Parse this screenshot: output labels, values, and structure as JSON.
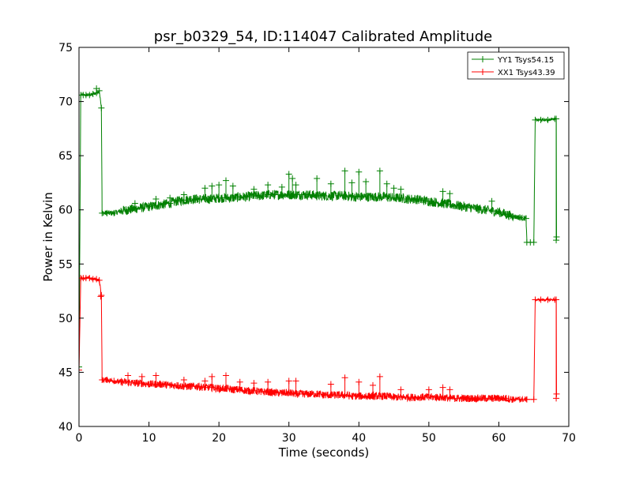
{
  "chart_data": {
    "type": "line",
    "title": "psr_b0329_54, ID:114047 Calibrated Amplitude",
    "xlabel": "Time (seconds)",
    "ylabel": "Power in Kelvin",
    "xlim": [
      0,
      70
    ],
    "ylim": [
      40,
      75
    ],
    "xticks": [
      0,
      10,
      20,
      30,
      40,
      50,
      60,
      70
    ],
    "yticks": [
      40,
      45,
      50,
      55,
      60,
      65,
      70,
      75
    ],
    "grid": false,
    "legend_position": "top-right",
    "series": [
      {
        "name": "YY1 Tsys54.15",
        "color": "#008000",
        "points": [
          [
            0.0,
            45.5
          ],
          [
            0.25,
            70.6
          ],
          [
            0.6,
            70.6
          ],
          [
            1.0,
            70.6
          ],
          [
            1.5,
            70.6
          ],
          [
            2.0,
            70.7
          ],
          [
            2.5,
            70.8
          ],
          [
            2.9,
            71.0
          ],
          [
            3.2,
            69.4
          ],
          [
            3.3,
            59.7
          ],
          [
            4.0,
            59.7
          ],
          [
            5.0,
            59.7
          ],
          [
            6.0,
            59.9
          ],
          [
            7.0,
            60.0
          ],
          [
            8.0,
            60.1
          ],
          [
            9.0,
            60.2
          ],
          [
            10.0,
            60.3
          ],
          [
            11.0,
            60.4
          ],
          [
            12.0,
            60.5
          ],
          [
            13.0,
            60.6
          ],
          [
            14.0,
            60.8
          ],
          [
            15.0,
            60.9
          ],
          [
            16.0,
            61.0
          ],
          [
            17.0,
            61.0
          ],
          [
            18.0,
            61.0
          ],
          [
            19.0,
            61.0
          ],
          [
            20.0,
            61.1
          ],
          [
            21.0,
            61.1
          ],
          [
            22.0,
            61.1
          ],
          [
            23.0,
            61.2
          ],
          [
            24.0,
            61.2
          ],
          [
            25.0,
            61.3
          ],
          [
            26.0,
            61.3
          ],
          [
            27.0,
            61.4
          ],
          [
            28.0,
            61.4
          ],
          [
            29.0,
            61.4
          ],
          [
            30.0,
            61.4
          ],
          [
            31.0,
            61.4
          ],
          [
            32.0,
            61.4
          ],
          [
            33.0,
            61.4
          ],
          [
            34.0,
            61.3
          ],
          [
            35.0,
            61.3
          ],
          [
            36.0,
            61.3
          ],
          [
            37.0,
            61.3
          ],
          [
            38.0,
            61.3
          ],
          [
            39.0,
            61.2
          ],
          [
            40.0,
            61.2
          ],
          [
            41.0,
            61.2
          ],
          [
            42.0,
            61.2
          ],
          [
            43.0,
            61.2
          ],
          [
            44.0,
            61.2
          ],
          [
            45.0,
            61.1
          ],
          [
            46.0,
            61.1
          ],
          [
            47.0,
            61.0
          ],
          [
            48.0,
            61.0
          ],
          [
            49.0,
            60.9
          ],
          [
            50.0,
            60.8
          ],
          [
            51.0,
            60.7
          ],
          [
            52.0,
            60.6
          ],
          [
            53.0,
            60.5
          ],
          [
            54.0,
            60.4
          ],
          [
            55.0,
            60.3
          ],
          [
            56.0,
            60.2
          ],
          [
            57.0,
            60.1
          ],
          [
            58.0,
            60.0
          ],
          [
            59.0,
            59.9
          ],
          [
            60.0,
            59.8
          ],
          [
            61.0,
            59.6
          ],
          [
            62.0,
            59.4
          ],
          [
            63.0,
            59.3
          ],
          [
            63.9,
            59.2
          ],
          [
            64.0,
            57.0
          ],
          [
            64.5,
            57.0
          ],
          [
            65.0,
            57.0
          ],
          [
            65.2,
            68.3
          ],
          [
            66.0,
            68.3
          ],
          [
            67.0,
            68.3
          ],
          [
            68.0,
            68.4
          ],
          [
            68.2,
            68.4
          ],
          [
            68.25,
            57.5
          ]
        ]
      },
      {
        "name": "XX1 Tsys43.39",
        "color": "#ff0000",
        "points": [
          [
            0.0,
            45.2
          ],
          [
            0.25,
            53.7
          ],
          [
            0.6,
            53.7
          ],
          [
            1.0,
            53.7
          ],
          [
            1.5,
            53.7
          ],
          [
            2.0,
            53.6
          ],
          [
            2.5,
            53.6
          ],
          [
            2.9,
            53.5
          ],
          [
            3.2,
            52.1
          ],
          [
            3.3,
            44.3
          ],
          [
            4.0,
            44.3
          ],
          [
            5.0,
            44.2
          ],
          [
            6.0,
            44.1
          ],
          [
            7.0,
            44.1
          ],
          [
            8.0,
            44.0
          ],
          [
            9.0,
            44.0
          ],
          [
            10.0,
            43.9
          ],
          [
            11.0,
            43.9
          ],
          [
            12.0,
            43.9
          ],
          [
            13.0,
            43.8
          ],
          [
            14.0,
            43.8
          ],
          [
            15.0,
            43.7
          ],
          [
            16.0,
            43.7
          ],
          [
            17.0,
            43.7
          ],
          [
            18.0,
            43.6
          ],
          [
            19.0,
            43.6
          ],
          [
            20.0,
            43.5
          ],
          [
            21.0,
            43.5
          ],
          [
            22.0,
            43.4
          ],
          [
            23.0,
            43.4
          ],
          [
            24.0,
            43.3
          ],
          [
            25.0,
            43.3
          ],
          [
            26.0,
            43.2
          ],
          [
            27.0,
            43.2
          ],
          [
            28.0,
            43.1
          ],
          [
            29.0,
            43.1
          ],
          [
            30.0,
            43.1
          ],
          [
            31.0,
            43.0
          ],
          [
            32.0,
            43.0
          ],
          [
            33.0,
            43.0
          ],
          [
            34.0,
            43.0
          ],
          [
            35.0,
            42.9
          ],
          [
            36.0,
            42.9
          ],
          [
            37.0,
            42.9
          ],
          [
            38.0,
            42.9
          ],
          [
            39.0,
            42.8
          ],
          [
            40.0,
            42.8
          ],
          [
            41.0,
            42.8
          ],
          [
            42.0,
            42.8
          ],
          [
            43.0,
            42.8
          ],
          [
            44.0,
            42.8
          ],
          [
            45.0,
            42.7
          ],
          [
            46.0,
            42.7
          ],
          [
            47.0,
            42.7
          ],
          [
            48.0,
            42.7
          ],
          [
            49.0,
            42.7
          ],
          [
            50.0,
            42.7
          ],
          [
            51.0,
            42.7
          ],
          [
            52.0,
            42.7
          ],
          [
            53.0,
            42.6
          ],
          [
            54.0,
            42.6
          ],
          [
            55.0,
            42.6
          ],
          [
            56.0,
            42.6
          ],
          [
            57.0,
            42.6
          ],
          [
            58.0,
            42.6
          ],
          [
            59.0,
            42.6
          ],
          [
            60.0,
            42.6
          ],
          [
            61.0,
            42.6
          ],
          [
            62.0,
            42.5
          ],
          [
            63.0,
            42.5
          ],
          [
            64.0,
            42.5
          ],
          [
            65.0,
            42.5
          ],
          [
            65.2,
            51.7
          ],
          [
            66.0,
            51.7
          ],
          [
            67.0,
            51.7
          ],
          [
            68.0,
            51.7
          ],
          [
            68.2,
            51.7
          ],
          [
            68.25,
            43.0
          ]
        ]
      }
    ],
    "noise_band": {
      "x_range": [
        6,
        62
      ],
      "series_amplitude": [
        0.45,
        0.35
      ]
    },
    "spikes": [
      {
        "series": 0,
        "points": [
          [
            2.5,
            71.2
          ],
          [
            8,
            60.6
          ],
          [
            11,
            61.0
          ],
          [
            13,
            61.1
          ],
          [
            15,
            61.4
          ],
          [
            18,
            62.0
          ],
          [
            19,
            62.2
          ],
          [
            20,
            62.3
          ],
          [
            21,
            62.7
          ],
          [
            22,
            62.2
          ],
          [
            25,
            61.9
          ],
          [
            27,
            62.3
          ],
          [
            29,
            62.1
          ],
          [
            30,
            63.3
          ],
          [
            30.5,
            62.9
          ],
          [
            31,
            62.3
          ],
          [
            34,
            62.9
          ],
          [
            36,
            62.4
          ],
          [
            38,
            63.6
          ],
          [
            39,
            62.5
          ],
          [
            40,
            63.5
          ],
          [
            41,
            62.6
          ],
          [
            43,
            63.6
          ],
          [
            44,
            62.4
          ],
          [
            45,
            62.0
          ],
          [
            46,
            61.9
          ],
          [
            52,
            61.7
          ],
          [
            53,
            61.5
          ],
          [
            59,
            60.8
          ],
          [
            68.2,
            57.2
          ]
        ]
      },
      {
        "series": 1,
        "points": [
          [
            3.1,
            52.0
          ],
          [
            7,
            44.7
          ],
          [
            9,
            44.6
          ],
          [
            11,
            44.7
          ],
          [
            15,
            44.3
          ],
          [
            18,
            44.2
          ],
          [
            19,
            44.6
          ],
          [
            21,
            44.7
          ],
          [
            23,
            44.1
          ],
          [
            25,
            44.0
          ],
          [
            27,
            44.1
          ],
          [
            30,
            44.2
          ],
          [
            31,
            44.2
          ],
          [
            36,
            43.9
          ],
          [
            38,
            44.5
          ],
          [
            40,
            44.1
          ],
          [
            42,
            43.8
          ],
          [
            43,
            44.6
          ],
          [
            46,
            43.4
          ],
          [
            50,
            43.4
          ],
          [
            52,
            43.6
          ],
          [
            53,
            43.4
          ],
          [
            68.2,
            42.6
          ]
        ]
      }
    ]
  }
}
